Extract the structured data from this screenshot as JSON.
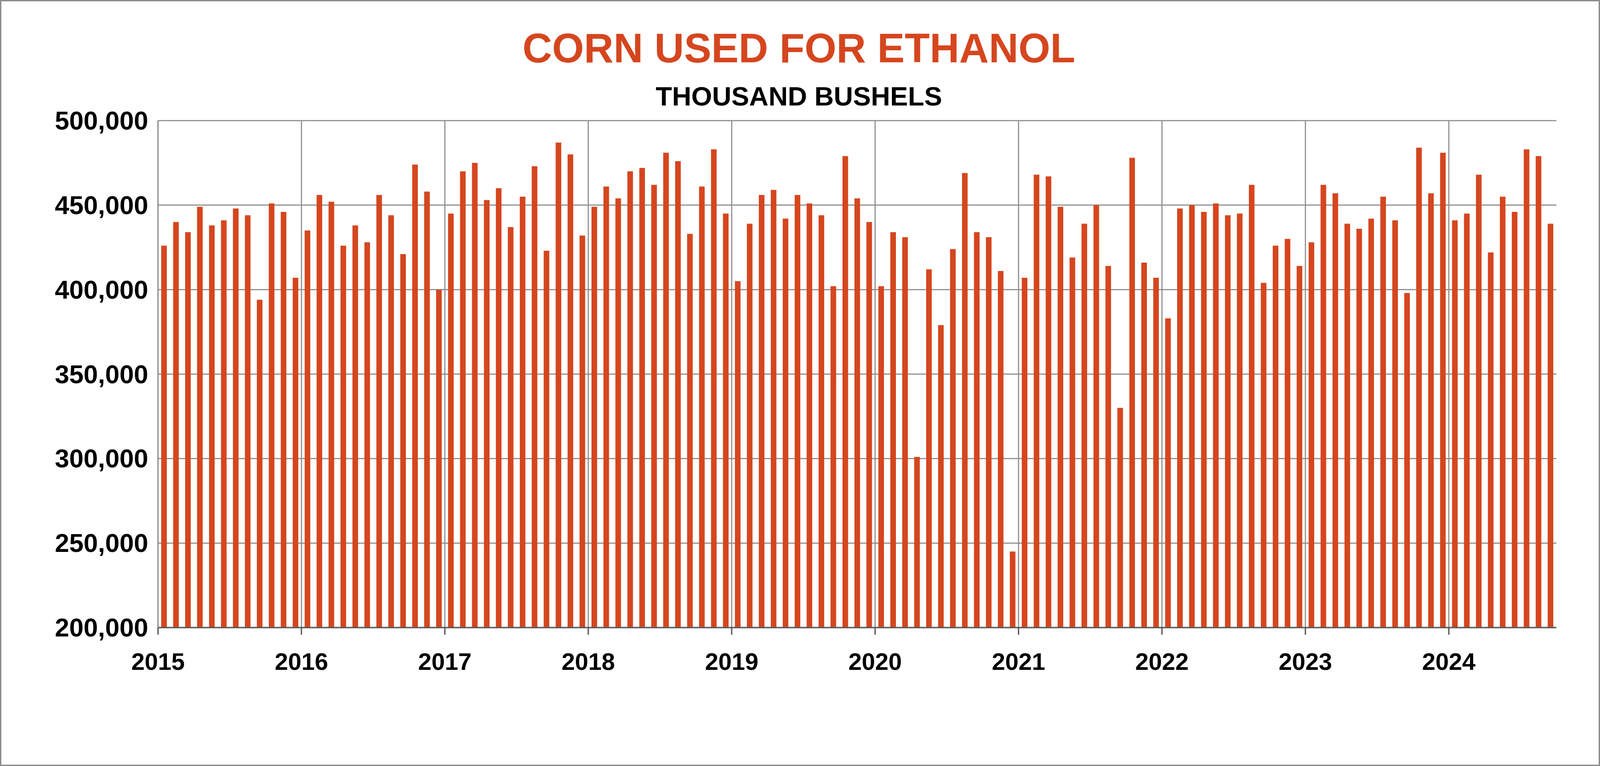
{
  "chart_data": {
    "type": "bar",
    "title": "CORN USED FOR ETHANOL",
    "subtitle": "THOUSAND BUSHELS",
    "categories": [
      "2015",
      null,
      null,
      null,
      null,
      null,
      null,
      null,
      null,
      null,
      null,
      null,
      "2016",
      null,
      null,
      null,
      null,
      null,
      null,
      null,
      null,
      null,
      null,
      null,
      "2017",
      null,
      null,
      null,
      null,
      null,
      null,
      null,
      null,
      null,
      null,
      null,
      "2018",
      null,
      null,
      null,
      null,
      null,
      null,
      null,
      null,
      null,
      null,
      null,
      "2019",
      null,
      null,
      null,
      null,
      null,
      null,
      null,
      null,
      null,
      null,
      null,
      "2020",
      null,
      null,
      null,
      null,
      null,
      null,
      null,
      null,
      null,
      null,
      null,
      "2021",
      null,
      null,
      null,
      null,
      null,
      null,
      null,
      null,
      null,
      null,
      null,
      "2022",
      null,
      null,
      null,
      null,
      null,
      null,
      null,
      null,
      null,
      null,
      null,
      "2023",
      null,
      null,
      null,
      null,
      null,
      null,
      null,
      null,
      null,
      null,
      null,
      "2024",
      null,
      null,
      null,
      null,
      null,
      null,
      null,
      null
    ],
    "values": [
      426000,
      440000,
      434000,
      449000,
      438000,
      441000,
      448000,
      444000,
      394000,
      451000,
      446000,
      407000,
      435000,
      456000,
      452000,
      426000,
      438000,
      428000,
      456000,
      444000,
      421000,
      474000,
      458000,
      400000,
      445000,
      470000,
      475000,
      453000,
      460000,
      437000,
      455000,
      473000,
      423000,
      487000,
      480000,
      432000,
      449000,
      461000,
      454000,
      470000,
      472000,
      462000,
      481000,
      476000,
      433000,
      461000,
      483000,
      445000,
      405000,
      439000,
      456000,
      459000,
      442000,
      456000,
      451000,
      444000,
      402000,
      479000,
      454000,
      440000,
      402000,
      434000,
      431000,
      301000,
      412000,
      379000,
      424000,
      469000,
      434000,
      431000,
      411000,
      245000,
      407000,
      468000,
      467000,
      449000,
      419000,
      439000,
      450000,
      414000,
      330000,
      478000,
      416000,
      407000,
      383000,
      448000,
      450000,
      446000,
      451000,
      444000,
      445000,
      462000,
      404000,
      426000,
      430000,
      414000,
      428000,
      462000,
      457000,
      439000,
      436000,
      442000,
      455000,
      441000,
      398000,
      484000,
      457000,
      481000,
      441000,
      445000,
      468000,
      422000,
      455000,
      446000,
      483000,
      479000,
      439000
    ],
    "color": "#d5461e",
    "ylim": [
      200000,
      500000
    ],
    "yticks": [
      {
        "value": 200000,
        "label": "200,000"
      },
      {
        "value": 250000,
        "label": "250,000"
      },
      {
        "value": 300000,
        "label": "300,000"
      },
      {
        "value": 350000,
        "label": "350,000"
      },
      {
        "value": 400000,
        "label": "400,000"
      },
      {
        "value": 450000,
        "label": "450,000"
      },
      {
        "value": 500000,
        "label": "500,000"
      }
    ],
    "grid": true
  }
}
